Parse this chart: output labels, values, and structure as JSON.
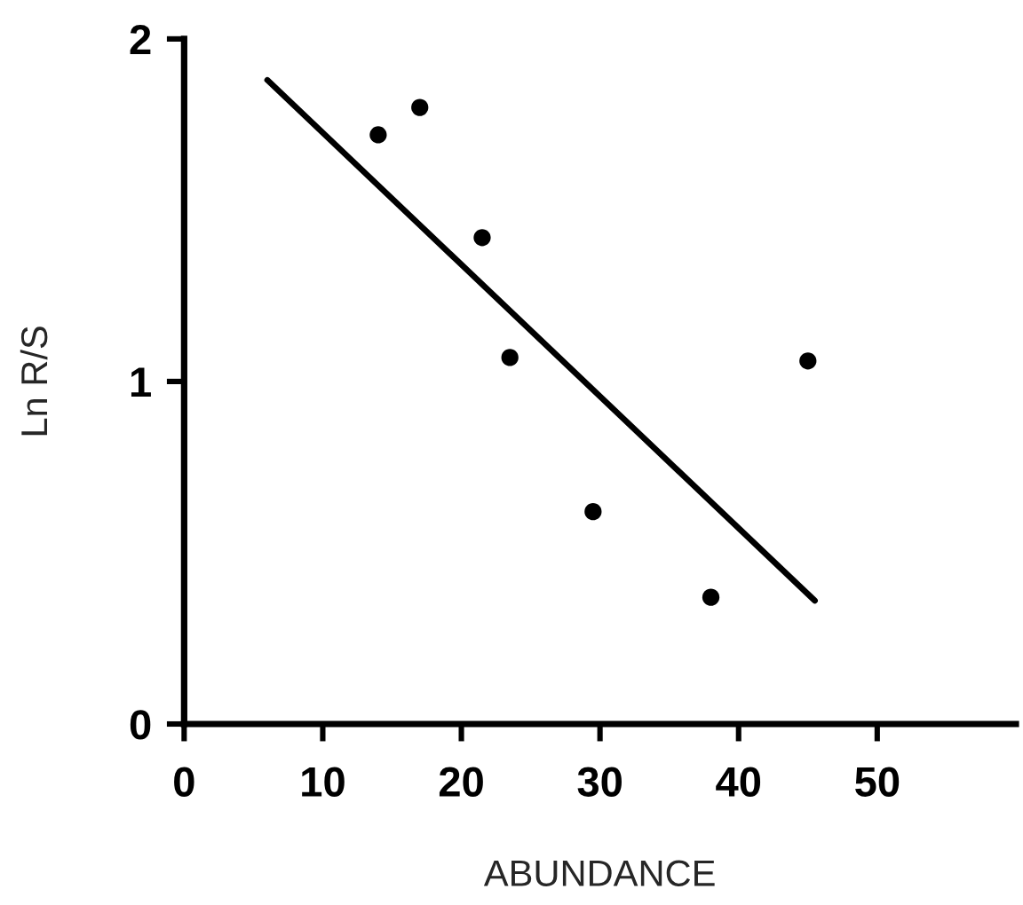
{
  "chart_data": {
    "type": "scatter",
    "xlabel": "ABUNDANCE",
    "ylabel": "Ln R/S",
    "xlim": [
      0,
      60
    ],
    "xticks": [
      0,
      10,
      20,
      30,
      40,
      50
    ],
    "ylim": [
      0,
      2
    ],
    "yticks": [
      0,
      1,
      2
    ],
    "series": [
      {
        "color": "#000000",
        "marker": "circle",
        "x": [
          14,
          17,
          21.5,
          23.5,
          29.5,
          38,
          45
        ],
        "values": [
          1.72,
          1.8,
          1.42,
          1.07,
          0.62,
          0.37,
          1.06
        ]
      },
      {
        "type": "line",
        "color": "#000000",
        "x": [
          6,
          45.5
        ],
        "values": [
          1.88,
          0.36
        ]
      }
    ]
  }
}
